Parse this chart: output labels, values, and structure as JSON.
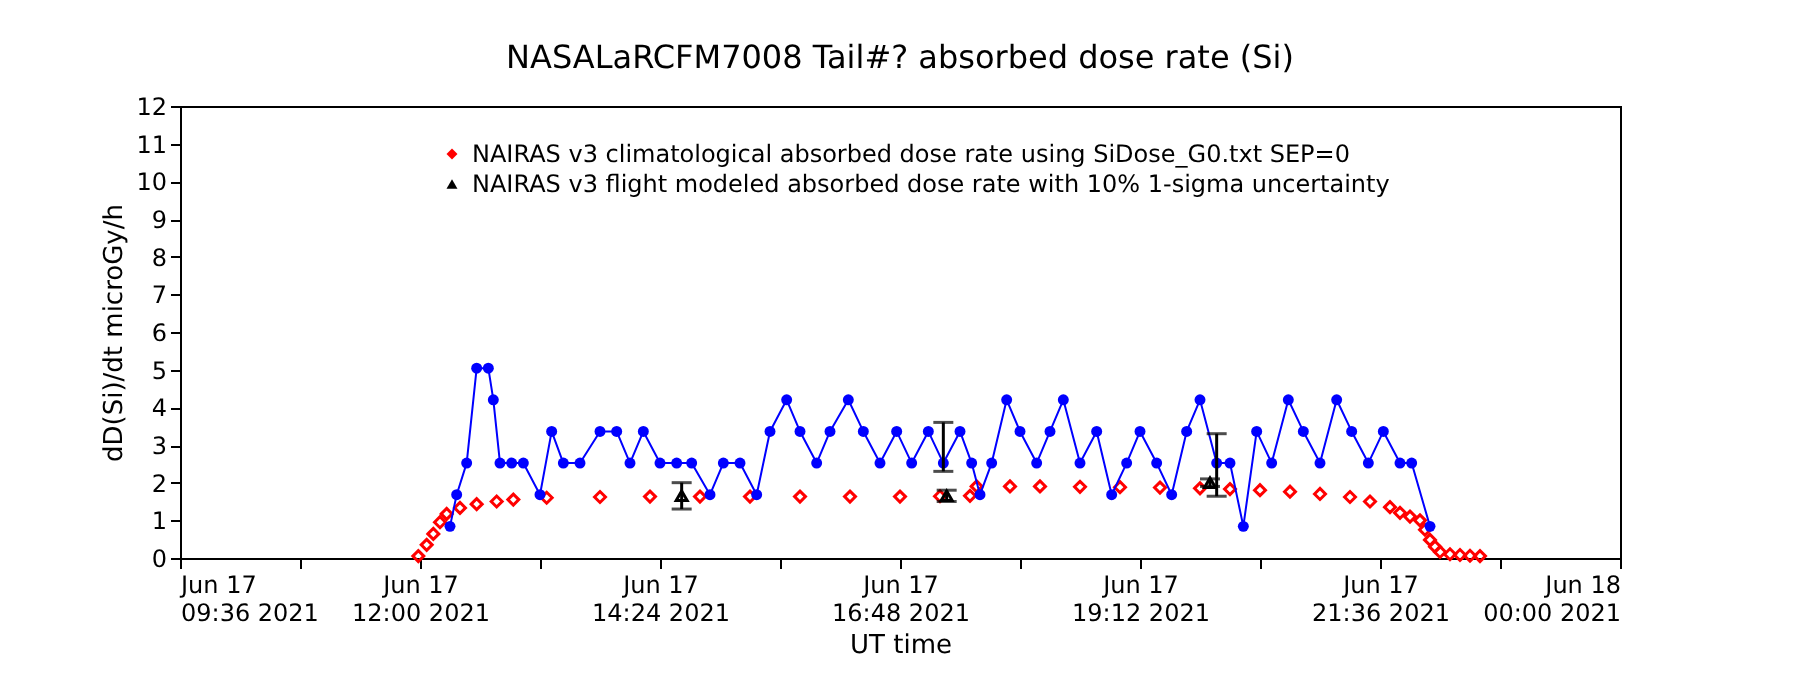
{
  "chart_data": {
    "type": "line",
    "title": "NASALaRCFM7008  Tail#? absorbed dose rate (Si)",
    "xlabel": "UT time",
    "ylabel": "dD(Si)/dt microGy/h",
    "xlim": [
      "2021-06-17T09:36",
      "2021-06-18T00:00"
    ],
    "ylim": [
      0,
      12
    ],
    "xticks": [
      {
        "value": "2021-06-17T09:36",
        "label": "Jun 17\n09:36 2021"
      },
      {
        "value": "2021-06-17T10:48",
        "label": null
      },
      {
        "value": "2021-06-17T12:00",
        "label": "Jun 17\n12:00 2021"
      },
      {
        "value": "2021-06-17T13:12",
        "label": null
      },
      {
        "value": "2021-06-17T14:24",
        "label": "Jun 17\n14:24 2021"
      },
      {
        "value": "2021-06-17T15:36",
        "label": null
      },
      {
        "value": "2021-06-17T16:48",
        "label": "Jun 17\n16:48 2021"
      },
      {
        "value": "2021-06-17T18:00",
        "label": null
      },
      {
        "value": "2021-06-17T19:12",
        "label": "Jun 17\n19:12 2021"
      },
      {
        "value": "2021-06-17T20:24",
        "label": null
      },
      {
        "value": "2021-06-17T21:36",
        "label": "Jun 17\n21:36 2021"
      },
      {
        "value": "2021-06-17T22:48",
        "label": null
      },
      {
        "value": "2021-06-18T00:00",
        "label": "Jun 18\n00:00 2021"
      }
    ],
    "yticks": [
      0,
      1,
      2,
      3,
      4,
      5,
      6,
      7,
      8,
      9,
      10,
      11,
      12
    ],
    "grid": false,
    "legend": "top",
    "series": [
      {
        "name": "NAIRAS v3 climatological absorbed dose rate using SiDose_G0.txt SEP=0",
        "type": "scatter",
        "marker": "diamond",
        "color": "#ff0000",
        "x": [
          "2021-06-17T11:59",
          "2021-06-17T12:04",
          "2021-06-17T12:08",
          "2021-06-17T12:12",
          "2021-06-17T12:16",
          "2021-06-17T12:24",
          "2021-06-17T12:34",
          "2021-06-17T12:46",
          "2021-06-17T12:56",
          "2021-06-17T13:16",
          "2021-06-17T13:48",
          "2021-06-17T14:18",
          "2021-06-17T14:48",
          "2021-06-17T15:18",
          "2021-06-17T15:48",
          "2021-06-17T16:18",
          "2021-06-17T16:48",
          "2021-06-17T17:12",
          "2021-06-17T17:30",
          "2021-06-17T17:34",
          "2021-06-17T17:54",
          "2021-06-17T18:12",
          "2021-06-17T18:36",
          "2021-06-17T19:00",
          "2021-06-17T19:24",
          "2021-06-17T19:48",
          "2021-06-17T20:06",
          "2021-06-17T20:24",
          "2021-06-17T20:42",
          "2021-06-17T21:00",
          "2021-06-17T21:18",
          "2021-06-17T21:30",
          "2021-06-17T21:42",
          "2021-06-17T21:48",
          "2021-06-17T21:54",
          "2021-06-17T22:00",
          "2021-06-17T22:03",
          "2021-06-17T22:06",
          "2021-06-17T22:09",
          "2021-06-17T22:12",
          "2021-06-17T22:18",
          "2021-06-17T22:24",
          "2021-06-17T22:30",
          "2021-06-17T22:36"
        ],
        "values": [
          0.05,
          0.35,
          0.64,
          0.95,
          1.17,
          1.33,
          1.43,
          1.5,
          1.55,
          1.6,
          1.62,
          1.63,
          1.63,
          1.63,
          1.63,
          1.63,
          1.63,
          1.64,
          1.65,
          1.9,
          1.9,
          1.9,
          1.89,
          1.88,
          1.87,
          1.85,
          1.83,
          1.8,
          1.76,
          1.7,
          1.62,
          1.5,
          1.35,
          1.2,
          1.1,
          1.0,
          0.75,
          0.48,
          0.3,
          0.16,
          0.1,
          0.08,
          0.06,
          0.05
        ]
      },
      {
        "name": "NAIRAS v3 flight modeled absorbed dose rate with 10% 1-sigma uncertainty",
        "type": "scatter",
        "marker": "triangle",
        "color": "#000000",
        "x": [
          "2021-06-17T14:37",
          "2021-06-17T17:16",
          "2021-06-17T19:54"
        ],
        "values": [
          1.65,
          1.65,
          2.0
        ],
        "errors": [
          [
            1.3,
            2.0
          ],
          [
            1.5,
            1.8
          ],
          [
            1.9,
            2.1
          ]
        ]
      },
      {
        "marker": "circle",
        "color": "#0000ff",
        "x": [
          "2021-06-17T12:18",
          "2021-06-17T12:22",
          "2021-06-17T12:28",
          "2021-06-17T12:34",
          "2021-06-17T12:41",
          "2021-06-17T12:44",
          "2021-06-17T12:48",
          "2021-06-17T12:55",
          "2021-06-17T13:02",
          "2021-06-17T13:12",
          "2021-06-17T13:19",
          "2021-06-17T13:26",
          "2021-06-17T13:36",
          "2021-06-17T13:48",
          "2021-06-17T13:58",
          "2021-06-17T14:06",
          "2021-06-17T14:14",
          "2021-06-17T14:24",
          "2021-06-17T14:34",
          "2021-06-17T14:43",
          "2021-06-17T14:54",
          "2021-06-17T15:02",
          "2021-06-17T15:12",
          "2021-06-17T15:22",
          "2021-06-17T15:30",
          "2021-06-17T15:40",
          "2021-06-17T15:48",
          "2021-06-17T15:58",
          "2021-06-17T16:06",
          "2021-06-17T16:17",
          "2021-06-17T16:26",
          "2021-06-17T16:36",
          "2021-06-17T16:46",
          "2021-06-17T16:55",
          "2021-06-17T17:05",
          "2021-06-17T17:14",
          "2021-06-17T17:24",
          "2021-06-17T17:31",
          "2021-06-17T17:36",
          "2021-06-17T17:43",
          "2021-06-17T17:52",
          "2021-06-17T18:00",
          "2021-06-17T18:10",
          "2021-06-17T18:18",
          "2021-06-17T18:26",
          "2021-06-17T18:36",
          "2021-06-17T18:46",
          "2021-06-17T18:55",
          "2021-06-17T19:04",
          "2021-06-17T19:12",
          "2021-06-17T19:22",
          "2021-06-17T19:31",
          "2021-06-17T19:40",
          "2021-06-17T19:48",
          "2021-06-17T19:58",
          "2021-06-17T20:06",
          "2021-06-17T20:14",
          "2021-06-17T20:22",
          "2021-06-17T20:31",
          "2021-06-17T20:41",
          "2021-06-17T20:50",
          "2021-06-17T21:00",
          "2021-06-17T21:10",
          "2021-06-17T21:19",
          "2021-06-17T21:29",
          "2021-06-17T21:38",
          "2021-06-17T21:48",
          "2021-06-17T21:55",
          "2021-06-17T22:06"
        ],
        "values": [
          0.84,
          1.68,
          2.52,
          5.04,
          5.04,
          4.2,
          2.52,
          2.52,
          2.52,
          1.68,
          3.36,
          2.52,
          2.52,
          3.36,
          3.36,
          2.52,
          3.36,
          2.52,
          2.52,
          2.52,
          1.68,
          2.52,
          2.52,
          1.68,
          3.36,
          4.2,
          3.36,
          2.52,
          3.36,
          4.2,
          3.36,
          2.52,
          3.36,
          2.52,
          3.36,
          2.52,
          3.36,
          2.52,
          1.68,
          2.52,
          4.2,
          3.36,
          2.52,
          3.36,
          4.2,
          2.52,
          3.36,
          1.68,
          2.52,
          3.36,
          2.52,
          1.68,
          3.36,
          4.2,
          2.52,
          2.52,
          0.84,
          3.36,
          2.52,
          4.2,
          3.36,
          2.52,
          4.2,
          3.36,
          2.52,
          3.36,
          2.52,
          2.52,
          0.84
        ],
        "errors": [
          null,
          null,
          null,
          null,
          null,
          null,
          null,
          null,
          null,
          null,
          null,
          null,
          null,
          null,
          null,
          null,
          null,
          null,
          null,
          null,
          null,
          null,
          null,
          null,
          null,
          null,
          null,
          null,
          null,
          null,
          null,
          null,
          null,
          null,
          null,
          [
            2.3,
            3.6
          ],
          null,
          null,
          null,
          null,
          null,
          null,
          null,
          null,
          null,
          null,
          null,
          null,
          null,
          null,
          null,
          null,
          null,
          null,
          [
            1.64,
            3.3
          ],
          null,
          null,
          null,
          null,
          null,
          null,
          null,
          null,
          null,
          null,
          null,
          null,
          null,
          null
        ]
      }
    ]
  }
}
